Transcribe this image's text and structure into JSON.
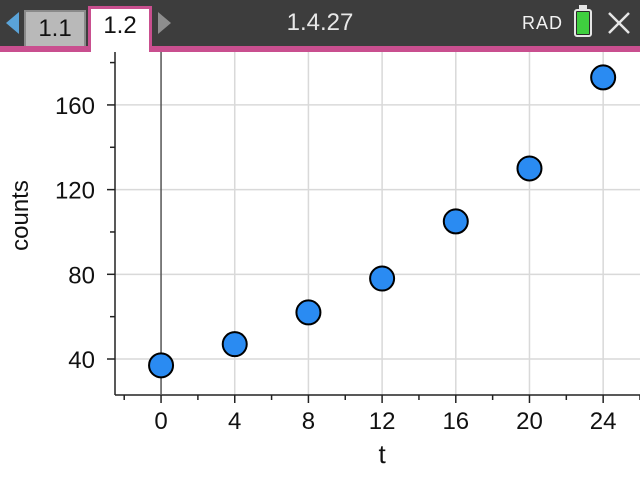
{
  "toolbar": {
    "tabs": [
      {
        "label": "1.1",
        "active": false
      },
      {
        "label": "1.2",
        "active": true
      }
    ],
    "document_title": "1.4.27",
    "angle_mode": "RAD",
    "battery_level": 1.0,
    "icons": {
      "prev_page": "arrow-left-icon",
      "next_page": "arrow-right-icon",
      "battery": "battery-icon",
      "close": "close-icon"
    },
    "accent_color": "#c94f8f"
  },
  "chart_data": {
    "type": "scatter",
    "xlabel": "t",
    "ylabel": "counts",
    "x_ticks": [
      0,
      4,
      8,
      12,
      16,
      20,
      24
    ],
    "y_ticks": [
      40,
      80,
      120,
      160
    ],
    "xlim": [
      -2.5,
      26
    ],
    "ylim": [
      23,
      185
    ],
    "grid": true,
    "point_color": "#2a8bf2",
    "series": [
      {
        "x": [
          0,
          4,
          8,
          12,
          16,
          20,
          24
        ],
        "y": [
          37,
          47,
          62,
          78,
          105,
          130,
          173
        ]
      }
    ]
  }
}
